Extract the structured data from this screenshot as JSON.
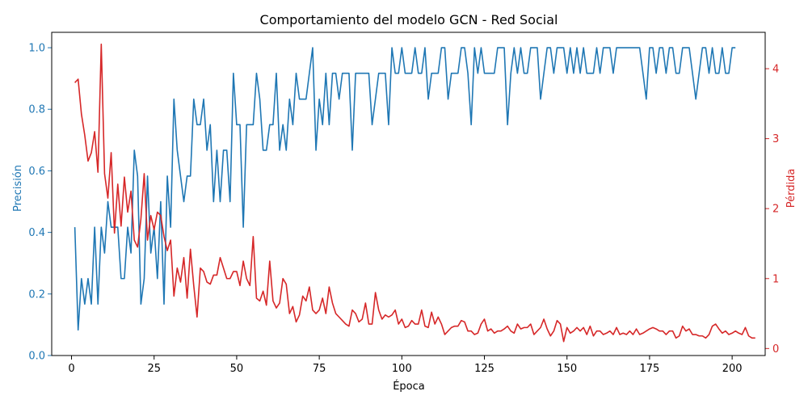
{
  "chart_data": {
    "type": "line",
    "title": "Comportamiento del modelo GCN - Red Social",
    "xlabel": "Época",
    "ylabel_left": "Precisión",
    "ylabel_right": "Pérdida",
    "xlim": [
      -6,
      210
    ],
    "xticks": [
      0,
      25,
      50,
      75,
      100,
      125,
      150,
      175,
      200
    ],
    "ylim_left": [
      0,
      1.05
    ],
    "yticks_left": [
      "0.0",
      "0.2",
      "0.4",
      "0.6",
      "0.8",
      "1.0"
    ],
    "ylim_right": [
      -0.1,
      4.52
    ],
    "yticks_right": [
      "0",
      "1",
      "2",
      "3",
      "4"
    ],
    "colors": {
      "accuracy": "#1f77b4",
      "loss": "#d62728"
    },
    "series": [
      {
        "name": "Precisión",
        "axis": "left",
        "values": [
          0.417,
          0.083,
          0.25,
          0.167,
          0.25,
          0.167,
          0.417,
          0.167,
          0.417,
          0.333,
          0.5,
          0.417,
          0.417,
          0.417,
          0.25,
          0.25,
          0.417,
          0.333,
          0.667,
          0.583,
          0.167,
          0.25,
          0.583,
          0.333,
          0.417,
          0.25,
          0.5,
          0.167,
          0.583,
          0.417,
          0.833,
          0.667,
          0.583,
          0.5,
          0.583,
          0.583,
          0.833,
          0.75,
          0.75,
          0.833,
          0.667,
          0.75,
          0.5,
          0.667,
          0.5,
          0.667,
          0.667,
          0.5,
          0.917,
          0.75,
          0.75,
          0.417,
          0.75,
          0.75,
          0.75,
          0.917,
          0.833,
          0.667,
          0.667,
          0.75,
          0.75,
          0.917,
          0.667,
          0.75,
          0.667,
          0.833,
          0.75,
          0.917,
          0.833,
          0.833,
          0.833,
          0.917,
          1.0,
          0.667,
          0.833,
          0.75,
          0.917,
          0.75,
          0.917,
          0.917,
          0.833,
          0.917,
          0.917,
          0.917,
          0.667,
          0.917,
          0.917,
          0.917,
          0.917,
          0.917,
          0.75,
          0.833,
          0.917,
          0.917,
          0.917,
          0.75,
          1.0,
          0.917,
          0.917,
          1.0,
          0.917,
          0.917,
          0.917,
          1.0,
          0.917,
          0.917,
          1.0,
          0.833,
          0.917,
          0.917,
          0.917,
          1.0,
          1.0,
          0.833,
          0.917,
          0.917,
          0.917,
          1.0,
          1.0,
          0.917,
          0.75,
          1.0,
          0.917,
          1.0,
          0.917,
          0.917,
          0.917,
          0.917,
          1.0,
          1.0,
          1.0,
          0.75,
          0.917,
          1.0,
          0.917,
          1.0,
          0.917,
          0.917,
          1.0,
          1.0,
          1.0,
          0.833,
          0.917,
          1.0,
          1.0,
          0.917,
          1.0,
          1.0,
          1.0,
          0.917,
          1.0,
          0.917,
          1.0,
          0.917,
          1.0,
          0.917,
          0.917,
          0.917,
          1.0,
          0.917,
          1.0,
          1.0,
          1.0,
          0.917,
          1.0,
          1.0,
          1.0,
          1.0,
          1.0,
          1.0,
          1.0,
          1.0,
          0.917,
          0.833,
          1.0,
          1.0,
          0.917,
          1.0,
          1.0,
          0.917,
          1.0,
          1.0,
          0.917,
          0.917,
          1.0,
          1.0,
          1.0,
          0.917,
          0.833,
          0.917,
          1.0,
          1.0,
          0.917,
          1.0,
          0.917,
          0.917,
          1.0,
          0.917,
          0.917,
          1.0,
          1.0
        ]
      },
      {
        "name": "Pérdida",
        "axis": "right",
        "values": [
          3.8,
          3.85,
          3.35,
          3.05,
          2.68,
          2.8,
          3.1,
          2.52,
          4.35,
          2.5,
          2.15,
          2.8,
          1.65,
          2.35,
          1.75,
          2.45,
          1.95,
          2.25,
          1.55,
          1.45,
          1.85,
          2.5,
          1.55,
          1.9,
          1.7,
          1.95,
          1.9,
          1.6,
          1.4,
          1.55,
          0.75,
          1.15,
          0.95,
          1.3,
          0.72,
          1.42,
          0.9,
          0.45,
          1.15,
          1.1,
          0.95,
          0.92,
          1.05,
          1.05,
          1.3,
          1.15,
          1.0,
          1.0,
          1.1,
          1.1,
          0.9,
          1.25,
          1.0,
          0.9,
          1.6,
          0.72,
          0.68,
          0.82,
          0.62,
          1.25,
          0.68,
          0.58,
          0.65,
          1.0,
          0.92,
          0.5,
          0.6,
          0.38,
          0.48,
          0.75,
          0.68,
          0.88,
          0.55,
          0.5,
          0.55,
          0.72,
          0.5,
          0.88,
          0.65,
          0.5,
          0.45,
          0.4,
          0.35,
          0.32,
          0.55,
          0.5,
          0.38,
          0.42,
          0.65,
          0.35,
          0.35,
          0.8,
          0.55,
          0.42,
          0.48,
          0.45,
          0.48,
          0.55,
          0.35,
          0.42,
          0.3,
          0.32,
          0.4,
          0.35,
          0.35,
          0.55,
          0.32,
          0.3,
          0.52,
          0.35,
          0.45,
          0.35,
          0.2,
          0.25,
          0.3,
          0.32,
          0.32,
          0.4,
          0.38,
          0.25,
          0.25,
          0.2,
          0.22,
          0.35,
          0.42,
          0.25,
          0.28,
          0.22,
          0.25,
          0.25,
          0.28,
          0.32,
          0.25,
          0.22,
          0.35,
          0.28,
          0.3,
          0.3,
          0.35,
          0.2,
          0.25,
          0.3,
          0.42,
          0.28,
          0.18,
          0.25,
          0.4,
          0.35,
          0.1,
          0.3,
          0.22,
          0.25,
          0.3,
          0.25,
          0.3,
          0.2,
          0.32,
          0.18,
          0.25,
          0.25,
          0.2,
          0.22,
          0.25,
          0.2,
          0.3,
          0.2,
          0.22,
          0.2,
          0.25,
          0.2,
          0.28,
          0.2,
          0.22,
          0.25,
          0.28,
          0.3,
          0.28,
          0.25,
          0.25,
          0.2,
          0.25,
          0.25,
          0.15,
          0.18,
          0.32,
          0.25,
          0.28,
          0.2,
          0.2,
          0.18,
          0.18,
          0.15,
          0.2,
          0.32,
          0.35,
          0.28,
          0.22,
          0.25,
          0.2,
          0.22,
          0.25,
          0.22,
          0.2,
          0.3,
          0.18,
          0.15,
          0.15
        ]
      }
    ]
  }
}
